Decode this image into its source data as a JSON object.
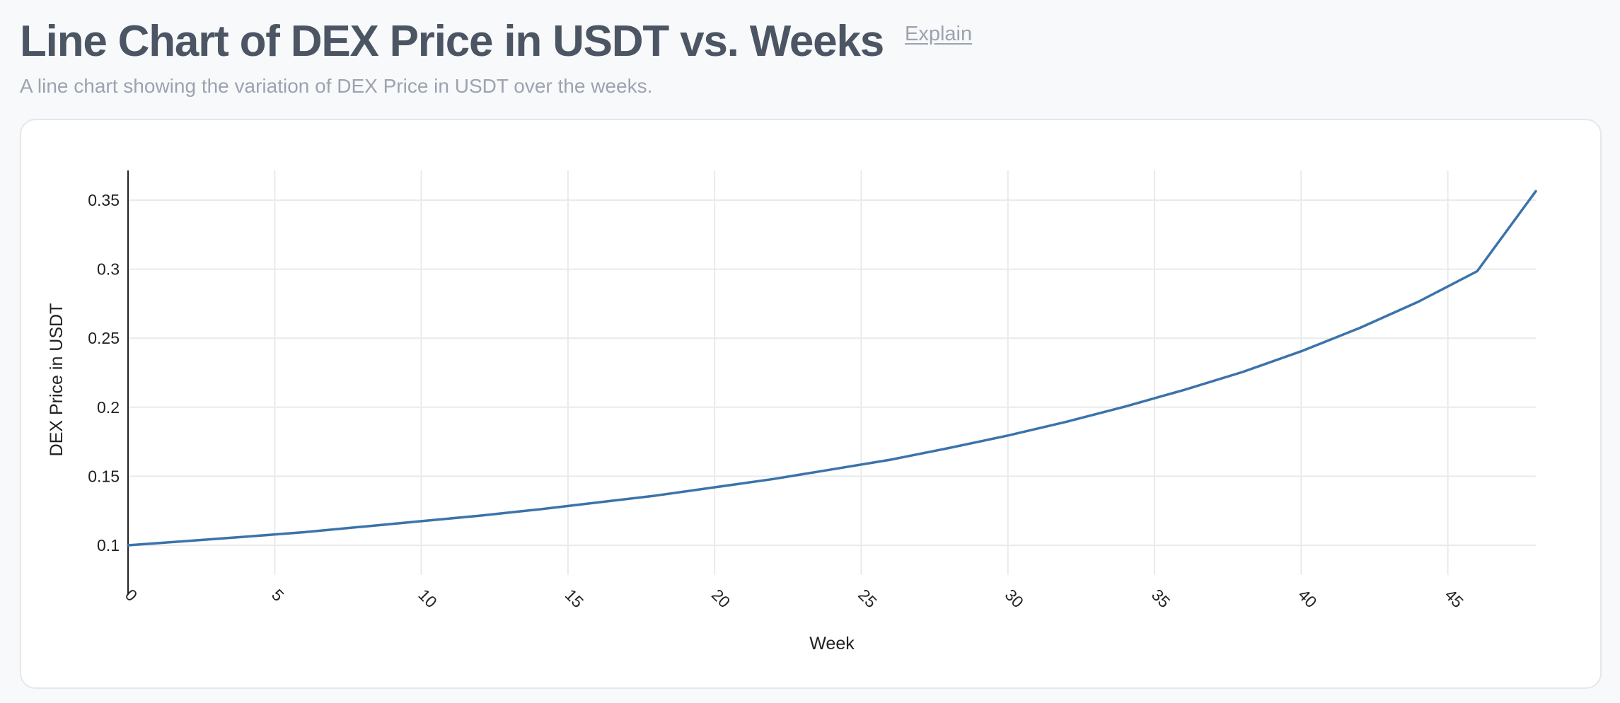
{
  "header": {
    "title": "Line Chart of DEX Price in USDT vs. Weeks",
    "explain_label": "Explain",
    "subtitle": "A line chart showing the variation of DEX Price in USDT over the weeks."
  },
  "colors": {
    "series": "#3b73aa",
    "grid": "#e9eaec",
    "axis": "#222222",
    "title": "#4b5563",
    "muted": "#9ca3af"
  },
  "chart_data": {
    "type": "line",
    "title": "",
    "xlabel": "Week",
    "ylabel": "DEX Price in USDT",
    "xlim": [
      0,
      48
    ],
    "ylim": [
      0.0785,
      0.3715
    ],
    "x_ticks": [
      0,
      5,
      10,
      15,
      20,
      25,
      30,
      35,
      40,
      45
    ],
    "y_ticks": [
      0.1,
      0.15,
      0.2,
      0.25,
      0.3,
      0.35
    ],
    "y_tick_labels": [
      "0.1",
      "0.15",
      "0.2",
      "0.25",
      "0.3",
      "0.35"
    ],
    "grid": true,
    "x_tick_rotation": "rotated ~45° clockwise",
    "series": [
      {
        "x": [
          0,
          2,
          4,
          6,
          8,
          10,
          12,
          14,
          16,
          18,
          20,
          22,
          24,
          26,
          28,
          30,
          32,
          34,
          36,
          38,
          40,
          42,
          44,
          46,
          48
        ],
        "values": [
          0.1,
          0.1031,
          0.1062,
          0.1095,
          0.1135,
          0.1175,
          0.1215,
          0.126,
          0.131,
          0.136,
          0.142,
          0.148,
          0.155,
          0.162,
          0.1705,
          0.1795,
          0.1895,
          0.2005,
          0.2125,
          0.2255,
          0.2405,
          0.2575,
          0.2765,
          0.2985,
          0.3565
        ]
      }
    ]
  }
}
